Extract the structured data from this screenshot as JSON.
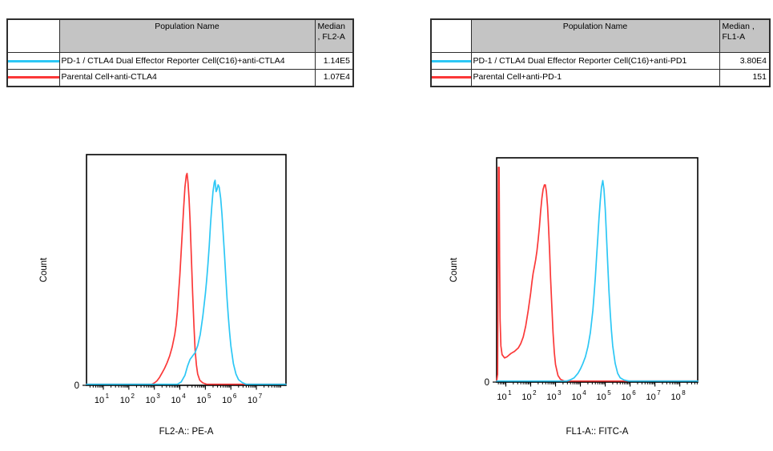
{
  "report": {
    "background": "#ffffff"
  },
  "colors": {
    "reporter_series": "#2cc7f5",
    "parental_series": "#fb3838",
    "table_header_bg": "#c4c4c4",
    "axis_and_border": "#000000"
  },
  "tables": [
    {
      "headers": {
        "swatch": "",
        "population": "Population Name",
        "median": "Median\n, FL2-A"
      },
      "rows": [
        {
          "swatch_color": "#2cc7f5",
          "population": "PD-1 / CTLA4 Dual Effector Reporter Cell(C16)+anti-CTLA4",
          "median": "1.14E5"
        },
        {
          "swatch_color": "#fb3838",
          "population": "Parental Cell+anti-CTLA4",
          "median": "1.07E4"
        }
      ]
    },
    {
      "headers": {
        "swatch": "",
        "population": "Population Name",
        "median": "Median ,\nFL1-A"
      },
      "rows": [
        {
          "swatch_color": "#2cc7f5",
          "population": "PD-1 / CTLA4 Dual Effector Reporter Cell(C16)+anti-PD1",
          "median": "3.80E4"
        },
        {
          "swatch_color": "#fb3838",
          "population": "Parental Cell+anti-PD-1",
          "median": "151"
        }
      ]
    }
  ],
  "chart_data": [
    {
      "type": "line",
      "subtype": "flow-cytometry-histogram-overlay",
      "title": "",
      "xlabel": "FL2-A:: PE-A",
      "ylabel": "Count",
      "x_scale": "log10",
      "x_range_log10": [
        0.34,
        8.16
      ],
      "x_major_ticks_exponents": [
        1,
        2,
        3,
        4,
        5,
        6,
        7
      ],
      "y_axis": {
        "zero_label": "0",
        "normalized": true
      },
      "grid": false,
      "legend_position": "table-above",
      "series": [
        {
          "key": "parental",
          "name": "Parental Cell+anti-CTLA4",
          "color": "#fb3838",
          "median": "1.07E4",
          "points_log10x_ynorm": [
            [
              0.34,
              0
            ],
            [
              2.9,
              0
            ],
            [
              3.0,
              0.006
            ],
            [
              3.1,
              0.015
            ],
            [
              3.2,
              0.03
            ],
            [
              3.3,
              0.05
            ],
            [
              3.4,
              0.07
            ],
            [
              3.5,
              0.095
            ],
            [
              3.6,
              0.125
            ],
            [
              3.7,
              0.165
            ],
            [
              3.8,
              0.22
            ],
            [
              3.85,
              0.26
            ],
            [
              3.9,
              0.32
            ],
            [
              3.95,
              0.4
            ],
            [
              4.0,
              0.48
            ],
            [
              4.05,
              0.58
            ],
            [
              4.1,
              0.68
            ],
            [
              4.15,
              0.78
            ],
            [
              4.2,
              0.87
            ],
            [
              4.25,
              0.92
            ],
            [
              4.28,
              0.93
            ],
            [
              4.32,
              0.89
            ],
            [
              4.36,
              0.82
            ],
            [
              4.4,
              0.72
            ],
            [
              4.45,
              0.56
            ],
            [
              4.5,
              0.4
            ],
            [
              4.55,
              0.26
            ],
            [
              4.6,
              0.15
            ],
            [
              4.65,
              0.085
            ],
            [
              4.7,
              0.045
            ],
            [
              4.78,
              0.018
            ],
            [
              4.9,
              0.006
            ],
            [
              5.05,
              0
            ],
            [
              8.16,
              0
            ]
          ]
        },
        {
          "key": "reporter",
          "name": "PD-1 / CTLA4 Dual Effector Reporter Cell(C16)+anti-CTLA4",
          "color": "#2cc7f5",
          "median": "1.14E5",
          "points_log10x_ynorm": [
            [
              0.34,
              0
            ],
            [
              3.9,
              0
            ],
            [
              4.05,
              0.01
            ],
            [
              4.2,
              0.04
            ],
            [
              4.3,
              0.08
            ],
            [
              4.4,
              0.11
            ],
            [
              4.5,
              0.125
            ],
            [
              4.6,
              0.14
            ],
            [
              4.7,
              0.17
            ],
            [
              4.8,
              0.22
            ],
            [
              4.9,
              0.3
            ],
            [
              5.0,
              0.4
            ],
            [
              5.05,
              0.46
            ],
            [
              5.1,
              0.53
            ],
            [
              5.15,
              0.61
            ],
            [
              5.2,
              0.7
            ],
            [
              5.25,
              0.78
            ],
            [
              5.3,
              0.85
            ],
            [
              5.35,
              0.89
            ],
            [
              5.38,
              0.9
            ],
            [
              5.42,
              0.85
            ],
            [
              5.46,
              0.86
            ],
            [
              5.5,
              0.88
            ],
            [
              5.54,
              0.87
            ],
            [
              5.6,
              0.82
            ],
            [
              5.65,
              0.75
            ],
            [
              5.7,
              0.66
            ],
            [
              5.75,
              0.57
            ],
            [
              5.8,
              0.47
            ],
            [
              5.85,
              0.38
            ],
            [
              5.9,
              0.3
            ],
            [
              5.95,
              0.23
            ],
            [
              6.0,
              0.17
            ],
            [
              6.1,
              0.09
            ],
            [
              6.2,
              0.045
            ],
            [
              6.3,
              0.02
            ],
            [
              6.45,
              0.007
            ],
            [
              6.6,
              0
            ],
            [
              8.16,
              0
            ]
          ]
        }
      ]
    },
    {
      "type": "line",
      "subtype": "flow-cytometry-histogram-overlay",
      "title": "",
      "xlabel": "FL1-A:: FITC-A",
      "ylabel": "Count",
      "x_scale": "log10",
      "x_range_log10": [
        0.63,
        8.72
      ],
      "x_major_ticks_exponents": [
        1,
        2,
        3,
        4,
        5,
        6,
        7,
        8
      ],
      "y_axis": {
        "zero_label": "0",
        "normalized": true
      },
      "grid": false,
      "legend_position": "table-above",
      "series": [
        {
          "key": "parental",
          "name": "Parental Cell+anti-PD-1",
          "color": "#fb3838",
          "median": "151",
          "points_log10x_ynorm": [
            [
              0.63,
              0
            ],
            [
              0.67,
              0.03
            ],
            [
              0.69,
              0.55
            ],
            [
              0.7,
              0.97
            ],
            [
              0.73,
              0.97
            ],
            [
              0.75,
              0.55
            ],
            [
              0.77,
              0.28
            ],
            [
              0.8,
              0.16
            ],
            [
              0.85,
              0.12
            ],
            [
              0.95,
              0.105
            ],
            [
              1.05,
              0.11
            ],
            [
              1.2,
              0.125
            ],
            [
              1.35,
              0.135
            ],
            [
              1.5,
              0.15
            ],
            [
              1.6,
              0.17
            ],
            [
              1.7,
              0.2
            ],
            [
              1.8,
              0.25
            ],
            [
              1.9,
              0.32
            ],
            [
              2.0,
              0.4
            ],
            [
              2.05,
              0.45
            ],
            [
              2.1,
              0.49
            ],
            [
              2.15,
              0.52
            ],
            [
              2.2,
              0.55
            ],
            [
              2.25,
              0.59
            ],
            [
              2.3,
              0.64
            ],
            [
              2.35,
              0.7
            ],
            [
              2.4,
              0.77
            ],
            [
              2.45,
              0.83
            ],
            [
              2.5,
              0.87
            ],
            [
              2.55,
              0.89
            ],
            [
              2.59,
              0.89
            ],
            [
              2.63,
              0.86
            ],
            [
              2.68,
              0.79
            ],
            [
              2.72,
              0.7
            ],
            [
              2.76,
              0.59
            ],
            [
              2.8,
              0.47
            ],
            [
              2.85,
              0.34
            ],
            [
              2.9,
              0.22
            ],
            [
              2.95,
              0.13
            ],
            [
              3.0,
              0.075
            ],
            [
              3.1,
              0.025
            ],
            [
              3.2,
              0.008
            ],
            [
              3.35,
              0
            ],
            [
              8.72,
              0
            ]
          ]
        },
        {
          "key": "reporter",
          "name": "PD-1 / CTLA4 Dual Effector Reporter Cell(C16)+anti-PD1",
          "color": "#2cc7f5",
          "median": "3.80E4",
          "points_log10x_ynorm": [
            [
              0.63,
              0
            ],
            [
              3.45,
              0
            ],
            [
              3.6,
              0.006
            ],
            [
              3.75,
              0.015
            ],
            [
              3.9,
              0.035
            ],
            [
              4.0,
              0.055
            ],
            [
              4.1,
              0.08
            ],
            [
              4.2,
              0.11
            ],
            [
              4.3,
              0.155
            ],
            [
              4.4,
              0.22
            ],
            [
              4.5,
              0.32
            ],
            [
              4.55,
              0.39
            ],
            [
              4.6,
              0.47
            ],
            [
              4.65,
              0.56
            ],
            [
              4.7,
              0.65
            ],
            [
              4.75,
              0.74
            ],
            [
              4.8,
              0.82
            ],
            [
              4.85,
              0.88
            ],
            [
              4.9,
              0.91
            ],
            [
              4.95,
              0.87
            ],
            [
              5.0,
              0.78
            ],
            [
              5.05,
              0.66
            ],
            [
              5.1,
              0.53
            ],
            [
              5.15,
              0.41
            ],
            [
              5.2,
              0.31
            ],
            [
              5.25,
              0.23
            ],
            [
              5.3,
              0.16
            ],
            [
              5.4,
              0.08
            ],
            [
              5.5,
              0.035
            ],
            [
              5.6,
              0.015
            ],
            [
              5.75,
              0.005
            ],
            [
              5.95,
              0
            ],
            [
              8.72,
              0
            ]
          ]
        }
      ]
    }
  ]
}
